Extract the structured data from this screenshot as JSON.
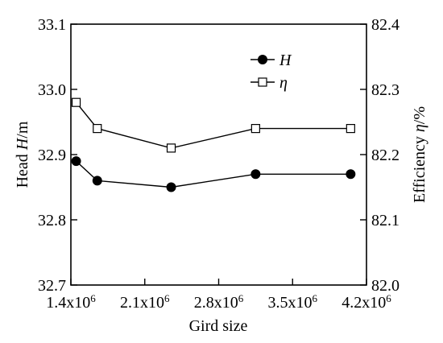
{
  "chart_data": {
    "type": "line",
    "title": "",
    "xlabel": "Gird size",
    "x_ticks": [
      {
        "value": 1400000,
        "mantissa": "1.4x10",
        "exp": "6"
      },
      {
        "value": 2100000,
        "mantissa": "2.1x10",
        "exp": "6"
      },
      {
        "value": 2800000,
        "mantissa": "2.8x10",
        "exp": "6"
      },
      {
        "value": 3500000,
        "mantissa": "3.5x10",
        "exp": "6"
      },
      {
        "value": 4200000,
        "mantissa": "4.2x10",
        "exp": "6"
      }
    ],
    "xlim": [
      1400000,
      4200000
    ],
    "y_left": {
      "label_prefix": "Head ",
      "label_var": "H",
      "label_suffix": "/m",
      "lim": [
        32.7,
        33.1
      ],
      "ticks": [
        "32.7",
        "32.8",
        "32.9",
        "33.0",
        "33.1"
      ]
    },
    "y_right": {
      "label_prefix": "Efficiency ",
      "label_var": "η",
      "label_suffix": "/%",
      "lim": [
        82.0,
        82.4
      ],
      "ticks": [
        "82.0",
        "82.1",
        "82.2",
        "82.3",
        "82.4"
      ]
    },
    "series": [
      {
        "name": "H",
        "axis": "left",
        "marker": "filled-circle",
        "color": "#000000",
        "x": [
          1450000,
          1650000,
          2350000,
          3150000,
          4050000
        ],
        "y": [
          32.89,
          32.86,
          32.85,
          32.87,
          32.87
        ]
      },
      {
        "name": "η",
        "axis": "right",
        "marker": "open-square",
        "color": "#000000",
        "x": [
          1450000,
          1650000,
          2350000,
          3150000,
          4050000
        ],
        "y": [
          82.28,
          82.24,
          82.21,
          82.24,
          82.24
        ]
      }
    ],
    "legend": "top-right",
    "grid": false
  }
}
